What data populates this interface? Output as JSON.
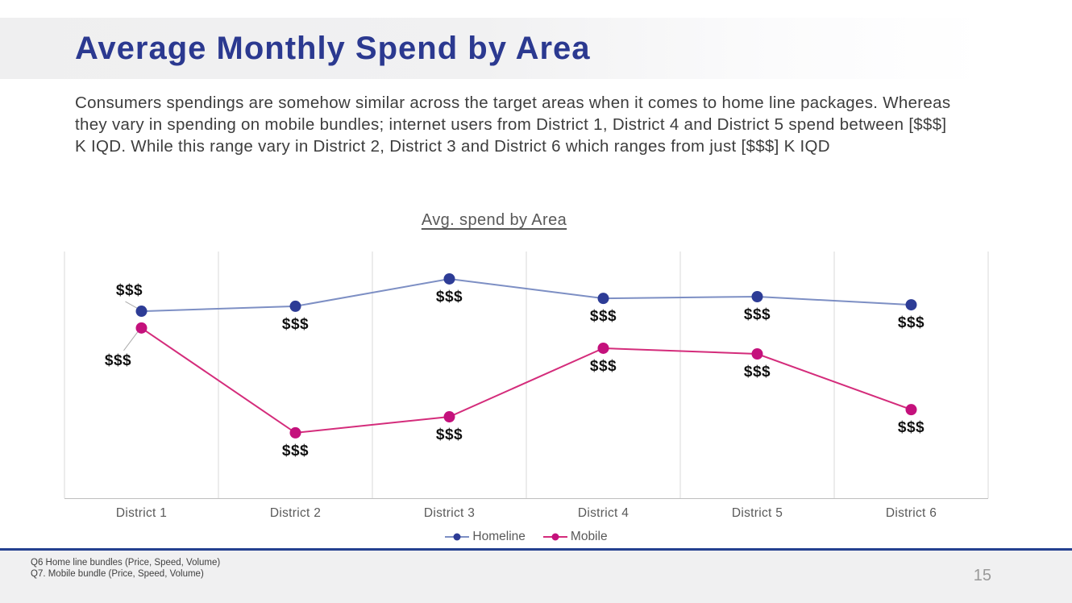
{
  "slide": {
    "title": "Average Monthly Spend by Area",
    "body_paragraph": "Consumers spendings are somehow similar across the target areas when it comes to home line packages. Whereas they vary in spending on mobile bundles; internet users from District 1, District 4 and District 5 spend between [$$$] K IQD. While this range vary in District 2, District 3 and District 6 which ranges from just [$$$] K IQD",
    "footnotes": [
      "Q6 Home line bundles (Price, Speed, Volume)",
      "Q7. Mobile bundle (Price, Speed, Volume)"
    ],
    "page_number": "15",
    "colors": {
      "title_blue": "#2B3990",
      "divider_navy": "#24408F"
    }
  },
  "chart_data": {
    "type": "line",
    "title": "Avg. spend by Area",
    "categories": [
      "District 1",
      "District 2",
      "District 3",
      "District 4",
      "District 5",
      "District 6"
    ],
    "series": [
      {
        "name": "Homeline",
        "marker_color": "#2D3C96",
        "line_color": "#7D8FC4",
        "data_labels": [
          "$$$",
          "$$$",
          "$$$",
          "$$$",
          "$$$",
          "$$$"
        ],
        "relative_values": [
          75.8,
          77.8,
          88.9,
          81.0,
          81.7,
          78.4
        ]
      },
      {
        "name": "Mobile",
        "marker_color": "#C4117C",
        "line_color": "#D42C7B",
        "data_labels": [
          "$$$",
          "$$$",
          "$$$",
          "$$$",
          "$$$",
          "$$$"
        ],
        "relative_values": [
          69.0,
          26.5,
          33.0,
          60.8,
          58.5,
          35.9
        ]
      }
    ],
    "values_masked": true,
    "value_axis": {
      "visible": false,
      "range": [
        0,
        100
      ]
    },
    "gridlines": "vertical",
    "legend_position": "bottom",
    "style": {
      "gridline_color": "#D9D9D9",
      "axis_color": "#BFBFBF",
      "leader_line_color": "#ABABAB",
      "data_label_color": "#111111",
      "category_label_color": "#595959"
    }
  }
}
